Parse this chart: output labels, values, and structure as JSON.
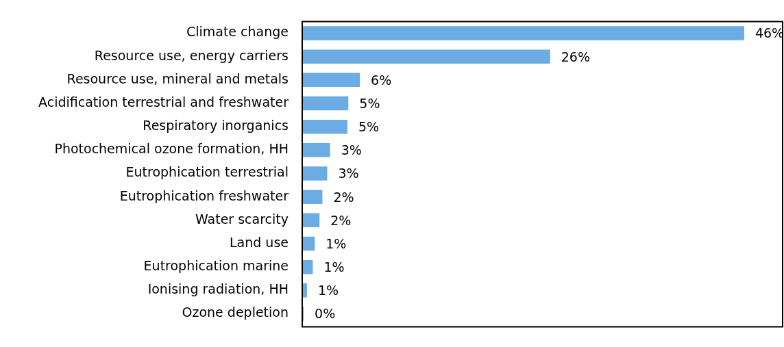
{
  "chart_data": {
    "type": "bar",
    "orientation": "horizontal",
    "categories": [
      "Climate change",
      "Resource use, energy carriers",
      "Resource use, mineral and metals",
      "Acidification terrestrial and freshwater",
      "Respiratory inorganics",
      "Photochemical ozone formation, HH",
      "Eutrophication terrestrial",
      "Eutrophication freshwater",
      "Water scarcity",
      "Land use",
      "Eutrophication marine",
      "Ionising radiation, HH",
      "Ozone depletion"
    ],
    "values": [
      46,
      25.8,
      6.0,
      4.8,
      4.7,
      2.9,
      2.6,
      2.1,
      1.8,
      1.3,
      1.1,
      0.5,
      0.15
    ],
    "value_labels": [
      "46%",
      "26%",
      "6%",
      "5%",
      "5%",
      "3%",
      "3%",
      "2%",
      "2%",
      "1%",
      "1%",
      "1%",
      "0%"
    ],
    "color": "#6aace3",
    "xlim": [
      0,
      50
    ],
    "legend": false
  }
}
